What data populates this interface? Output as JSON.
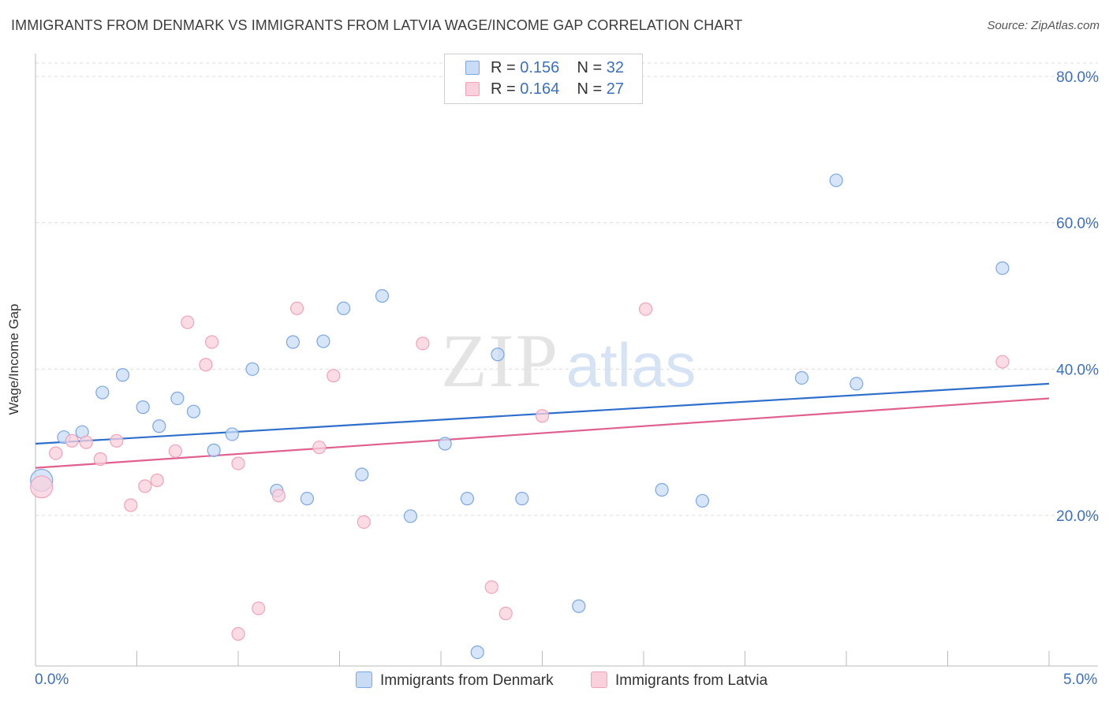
{
  "header": {
    "title": "IMMIGRANTS FROM DENMARK VS IMMIGRANTS FROM LATVIA WAGE/INCOME GAP CORRELATION CHART",
    "source": "Source: ZipAtlas.com"
  },
  "watermark": {
    "zip": "ZIP",
    "atlas": "atlas"
  },
  "legend": {
    "rows": [
      {
        "r_label": "R = ",
        "r_value": "0.156",
        "n_label": "N = ",
        "n_value": "32"
      },
      {
        "r_label": "R = ",
        "r_value": "0.164",
        "n_label": "N = ",
        "n_value": "27"
      }
    ]
  },
  "chart_data": {
    "type": "scatter",
    "title": "IMMIGRANTS FROM DENMARK VS IMMIGRANTS FROM LATVIA WAGE/INCOME GAP CORRELATION CHART",
    "xlabel": "",
    "ylabel": "Wage/Income Gap",
    "xlim": [
      0,
      5
    ],
    "ylim": [
      0,
      82
    ],
    "x_tick_labels": [
      "0.0%",
      "5.0%"
    ],
    "y_ticks": [
      20,
      40,
      60,
      80
    ],
    "y_tick_labels": [
      "20.0%",
      "40.0%",
      "60.0%",
      "80.0%"
    ],
    "grid": true,
    "legend_position": "top-center",
    "series": [
      {
        "name": "Immigrants from Denmark",
        "color": "#7aa7e6",
        "fill": "#c8dcf5",
        "line_color": "#2f6fcc",
        "r": 0.156,
        "n": 32,
        "trend": [
          [
            0,
            29.8
          ],
          [
            5,
            38.0
          ]
        ],
        "points": [
          [
            0.03,
            24.8
          ],
          [
            0.14,
            30.7
          ],
          [
            0.23,
            31.4
          ],
          [
            0.33,
            36.8
          ],
          [
            0.43,
            39.2
          ],
          [
            0.53,
            34.8
          ],
          [
            0.61,
            32.2
          ],
          [
            0.7,
            36.0
          ],
          [
            0.78,
            34.2
          ],
          [
            0.88,
            28.9
          ],
          [
            0.97,
            31.1
          ],
          [
            1.07,
            40.0
          ],
          [
            1.19,
            23.4
          ],
          [
            1.27,
            43.7
          ],
          [
            1.34,
            22.3
          ],
          [
            1.42,
            43.8
          ],
          [
            1.52,
            48.3
          ],
          [
            1.61,
            25.6
          ],
          [
            1.71,
            50.0
          ],
          [
            1.85,
            19.9
          ],
          [
            2.02,
            29.8
          ],
          [
            2.13,
            22.3
          ],
          [
            2.28,
            42.0
          ],
          [
            2.4,
            22.3
          ],
          [
            2.68,
            7.6
          ],
          [
            3.09,
            23.5
          ],
          [
            3.29,
            22.0
          ],
          [
            3.78,
            38.8
          ],
          [
            3.95,
            65.8
          ],
          [
            4.05,
            38.0
          ],
          [
            4.77,
            53.8
          ],
          [
            2.18,
            1.3
          ]
        ]
      },
      {
        "name": "Immigrants from Latvia",
        "color": "#f3a1b9",
        "fill": "#f9d0dc",
        "line_color": "#e0608e",
        "r": 0.164,
        "n": 27,
        "trend": [
          [
            0,
            26.5
          ],
          [
            5,
            36.0
          ]
        ],
        "points": [
          [
            0.03,
            23.9
          ],
          [
            0.1,
            28.5
          ],
          [
            0.18,
            30.2
          ],
          [
            0.25,
            30.0
          ],
          [
            0.32,
            27.7
          ],
          [
            0.4,
            30.2
          ],
          [
            0.47,
            21.4
          ],
          [
            0.54,
            24.0
          ],
          [
            0.6,
            24.8
          ],
          [
            0.69,
            28.8
          ],
          [
            0.75,
            46.4
          ],
          [
            0.84,
            40.6
          ],
          [
            0.87,
            43.7
          ],
          [
            1.0,
            27.1
          ],
          [
            1.1,
            7.3
          ],
          [
            1.2,
            22.7
          ],
          [
            1.29,
            48.3
          ],
          [
            1.4,
            29.3
          ],
          [
            1.47,
            39.1
          ],
          [
            1.62,
            19.1
          ],
          [
            1.91,
            43.5
          ],
          [
            2.25,
            10.2
          ],
          [
            2.32,
            6.6
          ],
          [
            2.5,
            33.6
          ],
          [
            3.01,
            48.2
          ],
          [
            1.0,
            3.8
          ],
          [
            4.77,
            41.0
          ]
        ]
      }
    ]
  },
  "bottom_legend": {
    "items": [
      {
        "label": "Immigrants from Denmark"
      },
      {
        "label": "Immigrants from Latvia"
      }
    ]
  }
}
